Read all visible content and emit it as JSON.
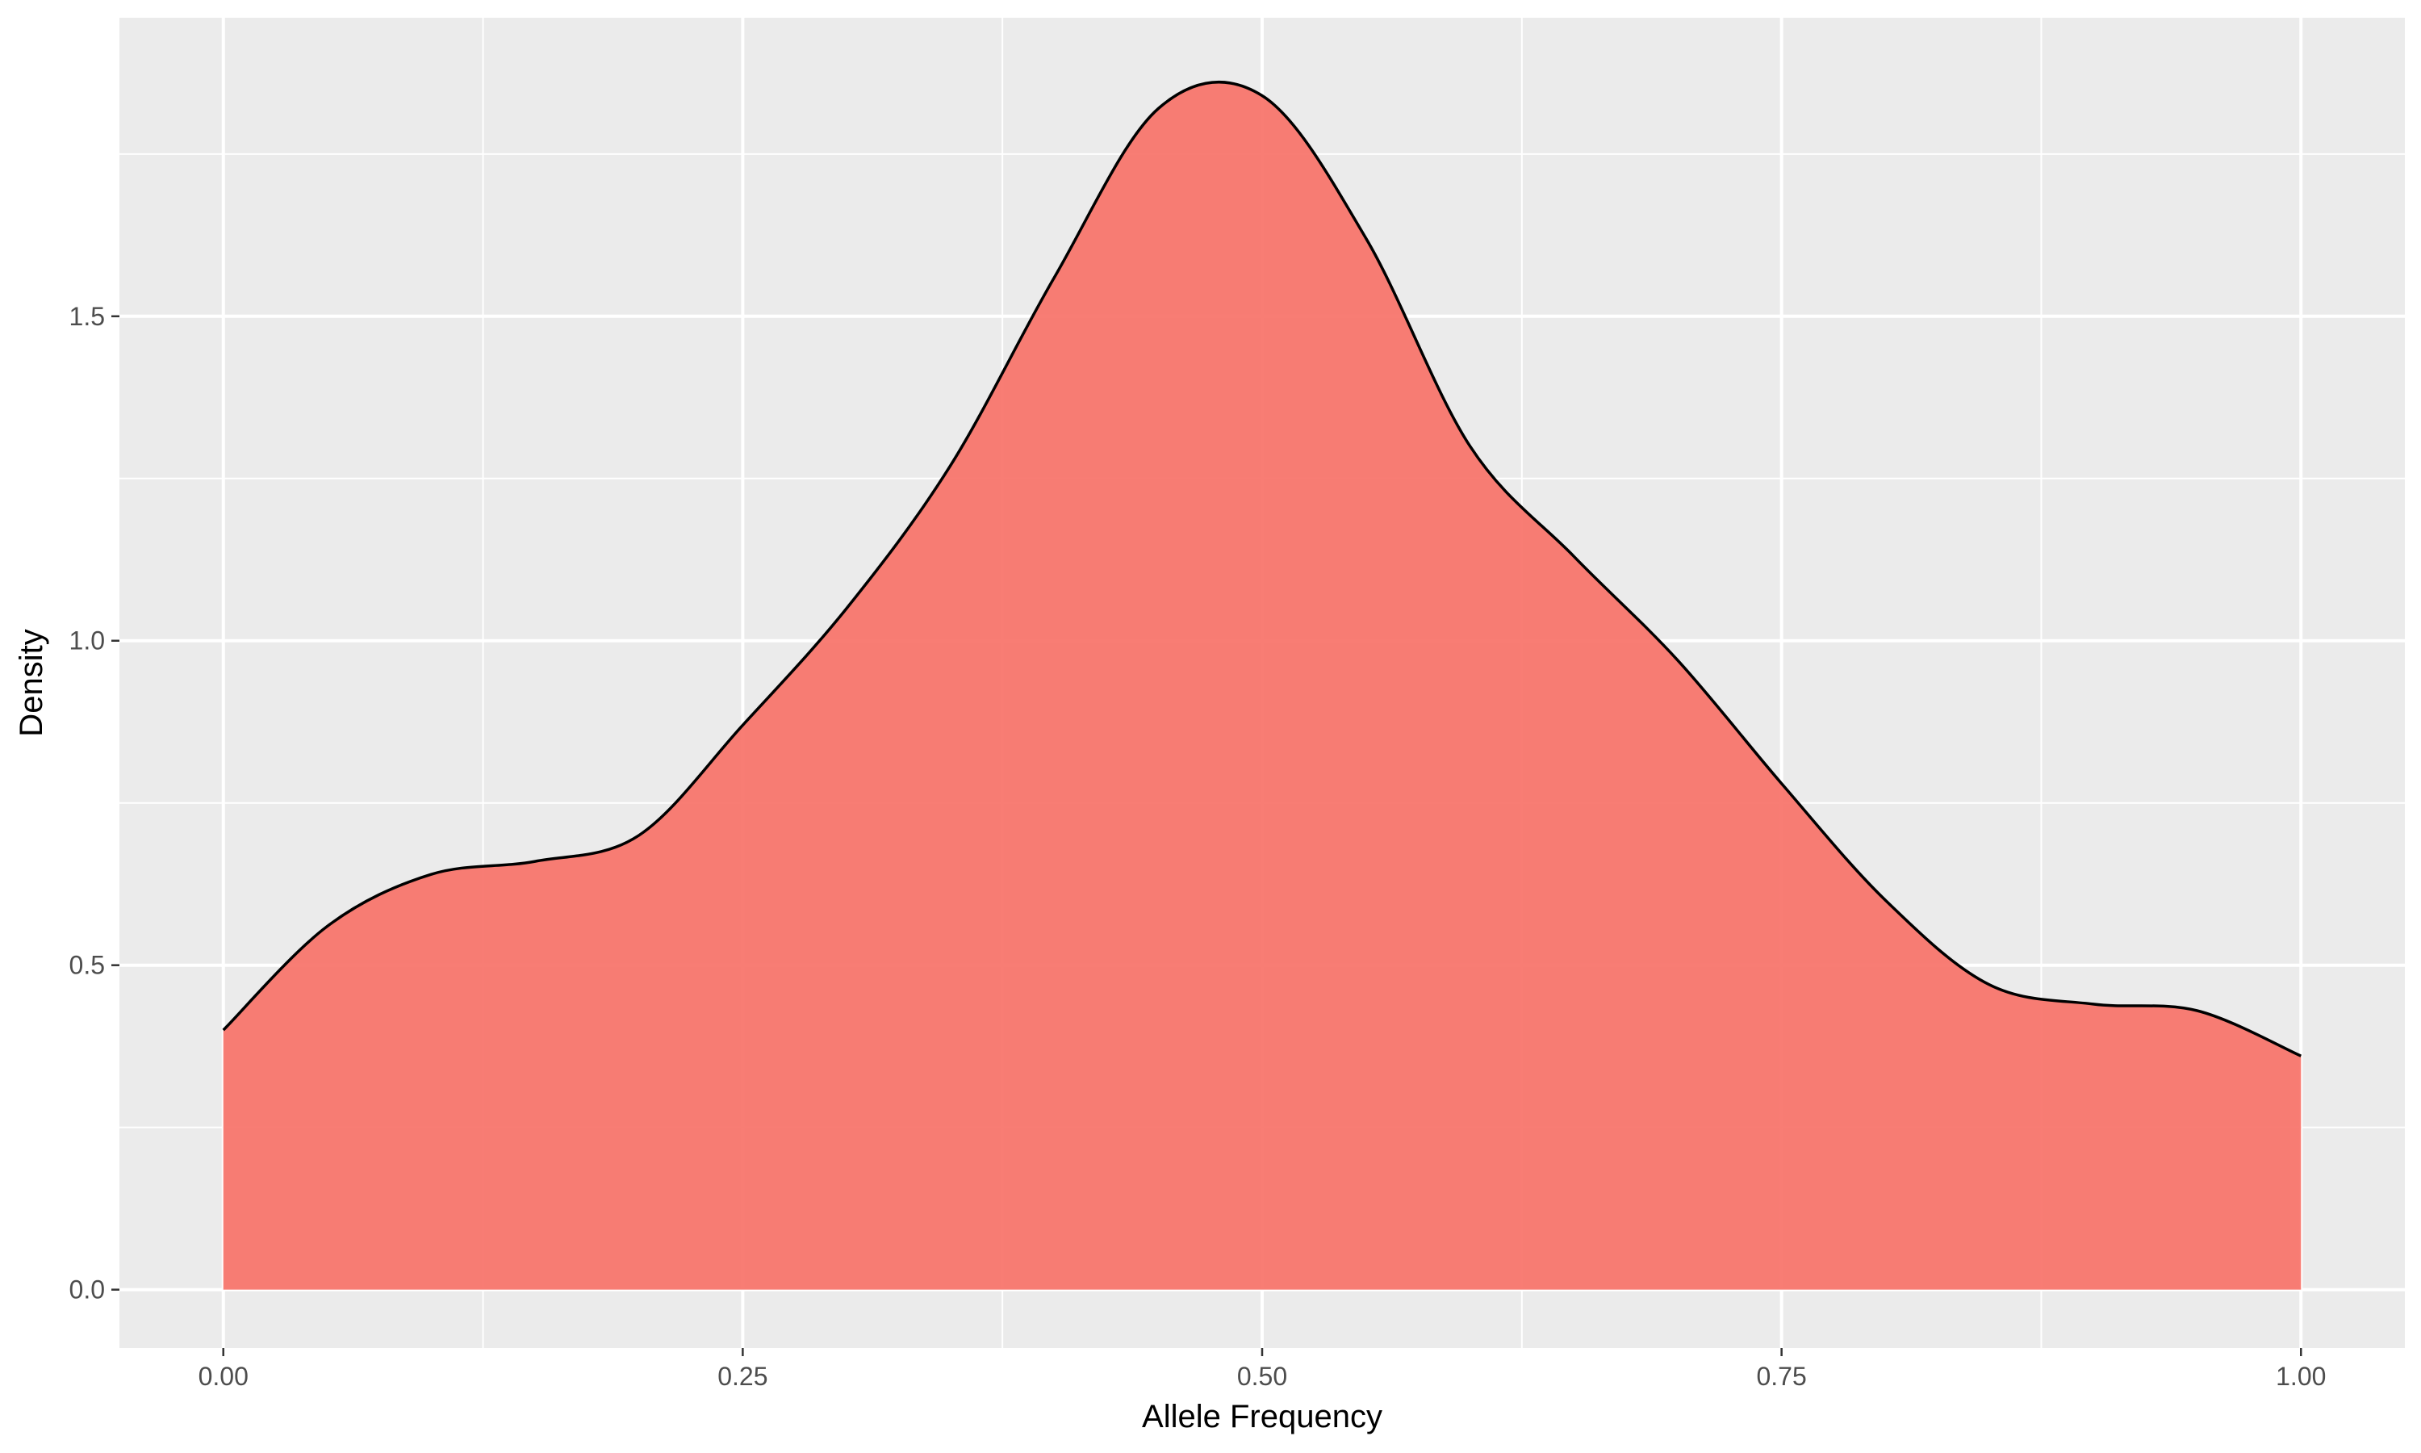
{
  "chart_data": {
    "type": "area",
    "title": "",
    "xlabel": "Allele Frequency",
    "ylabel": "Density",
    "xlim": [
      -0.05,
      1.05
    ],
    "ylim": [
      -0.09,
      1.96
    ],
    "x_ticks": [
      0.0,
      0.25,
      0.5,
      0.75,
      1.0
    ],
    "x_tick_labels": [
      "0.00",
      "0.25",
      "0.50",
      "0.75",
      "1.00"
    ],
    "y_ticks": [
      0.0,
      0.5,
      1.0,
      1.5
    ],
    "y_tick_labels": [
      "0.0",
      "0.5",
      "1.0",
      "1.5"
    ],
    "grid": true,
    "legend": "none",
    "colors": {
      "fill": "#f8766d",
      "line": "#000000",
      "panel": "#ebebeb",
      "grid": "#ffffff"
    },
    "series": [
      {
        "x": [
          0.0,
          0.05,
          0.1,
          0.15,
          0.2,
          0.25,
          0.3,
          0.35,
          0.4,
          0.45,
          0.5,
          0.55,
          0.6,
          0.65,
          0.7,
          0.75,
          0.8,
          0.85,
          0.9,
          0.95,
          1.0
        ],
        "y": [
          0.4,
          0.56,
          0.64,
          0.66,
          0.7,
          0.87,
          1.05,
          1.27,
          1.56,
          1.82,
          1.84,
          1.62,
          1.3,
          1.13,
          0.97,
          0.78,
          0.6,
          0.47,
          0.44,
          0.43,
          0.36
        ]
      }
    ]
  }
}
